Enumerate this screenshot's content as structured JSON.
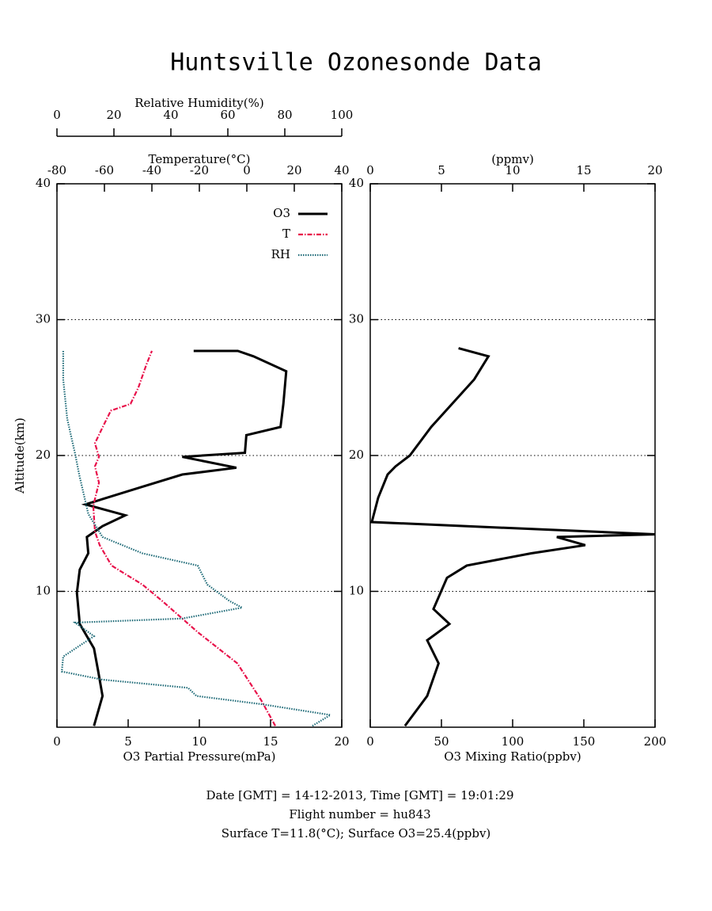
{
  "title": "Huntsville Ozonesonde Data",
  "footer": [
    "Date [GMT] = 14-12-2013,  Time [GMT] = 19:01:29",
    "Flight number = hu843",
    "Surface T=11.8(°C); Surface O3=25.4(ppbv)"
  ],
  "chart_data": [
    {
      "type": "line",
      "ylabel": "Altitude(km)",
      "ylim": [
        0,
        40
      ],
      "yticks": [
        10,
        20,
        30,
        40
      ],
      "grid": true,
      "xlabel": "O3 Partial Pressure(mPa)",
      "xlim": [
        0,
        20
      ],
      "xticks": [
        0,
        5,
        10,
        15,
        20
      ],
      "x2label": "Temperature(°C)",
      "x2lim": [
        -80,
        40
      ],
      "x2ticks": [
        -80,
        -60,
        -40,
        -20,
        0,
        20,
        40
      ],
      "x3label": "Relative Humidity(%)",
      "x3lim": [
        0,
        100
      ],
      "x3ticks": [
        0,
        20,
        40,
        60,
        80,
        100
      ],
      "legend": "upper right",
      "series": [
        {
          "name": "O3",
          "color": "#000000",
          "axis": "x",
          "line_style": "solid",
          "altitude": [
            0.1,
            2.3,
            4.1,
            5.8,
            7.6,
            9.9,
            11.6,
            12.8,
            14.0,
            14.8,
            15.6,
            16.4,
            17.7,
            18.6,
            19.1,
            19.9,
            20.2,
            21.5,
            22.1,
            23.8,
            26.2,
            27.3,
            27.7,
            27.7
          ],
          "values": [
            2.6,
            3.2,
            2.9,
            2.6,
            1.6,
            1.4,
            1.6,
            2.2,
            2.1,
            3.2,
            4.8,
            2.0,
            6.0,
            8.8,
            12.6,
            8.8,
            13.2,
            13.3,
            15.7,
            15.9,
            16.1,
            13.8,
            12.7,
            9.6
          ]
        },
        {
          "name": "T",
          "color": "#e8114a",
          "axis": "x2",
          "line_style": "dashdot",
          "altitude": [
            0.1,
            2.0,
            4.7,
            7.0,
            9.3,
            10.5,
            11.9,
            13.4,
            14.4,
            16.3,
            18.0,
            19.2,
            19.9,
            20.9,
            22.1,
            23.3,
            23.8,
            25.0,
            26.7,
            27.7
          ],
          "values": [
            12,
            6,
            -4,
            -20.7,
            -35.7,
            -44,
            -57,
            -62,
            -64,
            -64.7,
            -62.3,
            -64,
            -62.3,
            -64,
            -60.7,
            -57.3,
            -49,
            -45.7,
            -42.3,
            -40
          ]
        },
        {
          "name": "RH",
          "color": "#1f6b78",
          "axis": "x3",
          "line_style": "dotted",
          "altitude": [
            0.1,
            0.9,
            1.7,
            2.3,
            2.9,
            3.5,
            4.1,
            5.2,
            6.7,
            7.7,
            8.0,
            8.8,
            9.3,
            10.5,
            11.9,
            12.8,
            14.0,
            15.7,
            18.6,
            20.1,
            22.7,
            25.6,
            27.7
          ],
          "values": [
            89.7,
            96,
            71.7,
            49,
            46,
            16,
            1.7,
            2.2,
            13,
            6.4,
            44,
            65,
            60.5,
            52.8,
            49.4,
            30,
            16,
            11,
            7.8,
            6.4,
            3.6,
            2.2,
            2.2
          ]
        }
      ]
    },
    {
      "type": "line",
      "ylim": [
        0,
        40
      ],
      "yticks": [
        10,
        20,
        30,
        40
      ],
      "grid": true,
      "xlabel": "O3 Mixing Ratio(ppbv)",
      "xlim": [
        0,
        200
      ],
      "xticks": [
        0,
        50,
        100,
        150,
        200
      ],
      "x2label": "(ppmv)",
      "x2lim": [
        0,
        20
      ],
      "x2ticks": [
        0,
        5,
        10,
        15,
        20
      ],
      "series": [
        {
          "color": "#000000",
          "axis": "x",
          "line_style": "solid",
          "altitude": [
            0.1,
            2.3,
            4.7,
            6.4,
            7.6,
            8.7,
            11.0,
            11.9,
            12.8,
            13.4,
            14.0,
            14.2,
            15.1,
            16.9,
            18.6,
            19.2,
            20.0,
            22.1,
            25.6,
            27.3,
            27.9
          ],
          "values": [
            24.4,
            40,
            48,
            40,
            55.6,
            44.4,
            53.9,
            67.8,
            113,
            151,
            131,
            200,
            1.1,
            5.6,
            12.2,
            17.8,
            27.8,
            42.8,
            73,
            83,
            62
          ]
        }
      ]
    }
  ]
}
